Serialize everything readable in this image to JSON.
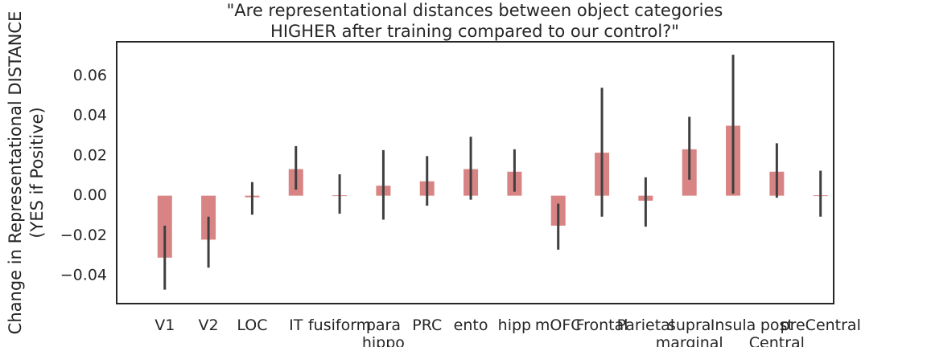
{
  "chart_data": {
    "type": "bar",
    "title": [
      "\"Are representational distances between object categories",
      "HIGHER after training compared to our control?\""
    ],
    "ylabel": [
      "Change in Representational DISTANCE",
      "(YES if Positive)"
    ],
    "xlabel": "",
    "ylim": [
      -0.054,
      0.077
    ],
    "yticks": [
      -0.04,
      -0.02,
      0.0,
      0.02,
      0.04,
      0.06
    ],
    "ytick_labels": [
      "−0.04",
      "−0.02",
      "0.00",
      "0.02",
      "0.04",
      "0.06"
    ],
    "grid": false,
    "categories": [
      [
        "V1"
      ],
      [
        "V2"
      ],
      [
        "LOC"
      ],
      [
        "IT"
      ],
      [
        "fusiform"
      ],
      [
        "para",
        "hippo"
      ],
      [
        "PRC"
      ],
      [
        "ento"
      ],
      [
        "hipp"
      ],
      [
        "mOFC"
      ],
      [
        "Frontal"
      ],
      [
        "Parietal"
      ],
      [
        "supra",
        "marginal"
      ],
      [
        "Insula"
      ],
      [
        "post",
        "Central"
      ],
      [
        "preCentral"
      ]
    ],
    "values": [
      -0.031,
      -0.022,
      -0.0008,
      0.0133,
      0.0003,
      0.005,
      0.0072,
      0.0133,
      0.012,
      -0.015,
      0.0215,
      -0.0025,
      0.0232,
      0.035,
      0.012,
      0.0003
    ],
    "err_low": [
      -0.047,
      -0.036,
      -0.0095,
      0.003,
      -0.009,
      -0.012,
      -0.005,
      -0.002,
      0.002,
      -0.027,
      -0.0105,
      -0.0155,
      0.008,
      0.001,
      -0.001,
      -0.0105
    ],
    "err_high": [
      -0.015,
      -0.0105,
      0.0068,
      0.0248,
      0.0107,
      0.0228,
      0.0198,
      0.0295,
      0.0232,
      -0.004,
      0.054,
      0.0092,
      0.0395,
      0.0705,
      0.0262,
      0.0125
    ],
    "colors": {
      "bar": "#d98484",
      "errorbar": "#3f3f3f",
      "axes": "#262626"
    }
  }
}
